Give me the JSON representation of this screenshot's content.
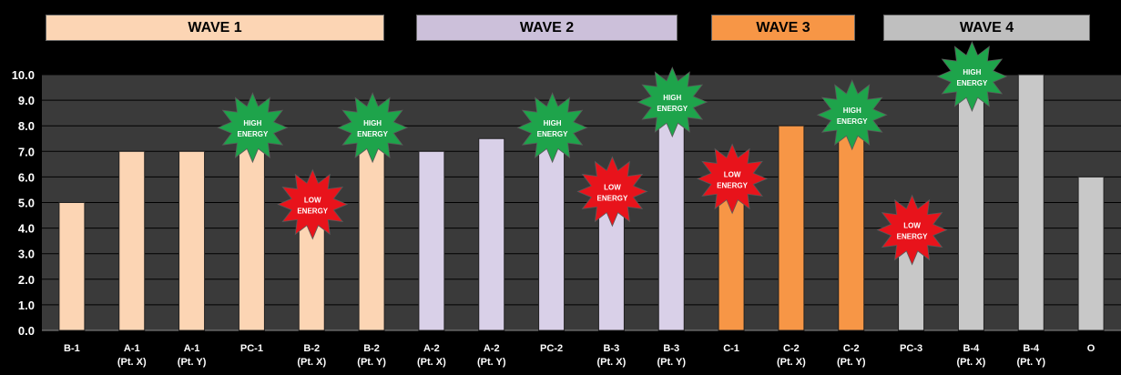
{
  "banners": [
    {
      "label": "WAVE 1",
      "color": "#FCD5B4"
    },
    {
      "label": "WAVE 2",
      "color": "#CCC0DA"
    },
    {
      "label": "WAVE 3",
      "color": "#F79646"
    },
    {
      "label": "WAVE 4",
      "color": "#BFBFBF"
    }
  ],
  "chart_data": {
    "type": "bar",
    "title": "",
    "xlabel": "",
    "ylabel": "",
    "ylim": [
      0,
      10
    ],
    "yticks": [
      "0.0",
      "1.0",
      "2.0",
      "3.0",
      "4.0",
      "5.0",
      "6.0",
      "7.0",
      "8.0",
      "9.0",
      "10.0"
    ],
    "grid": true,
    "categories": [
      [
        "B-1"
      ],
      [
        "A-1",
        "(Pt. X)"
      ],
      [
        "A-1",
        "(Pt. Y)"
      ],
      [
        "PC-1"
      ],
      [
        "B-2",
        "(Pt. X)"
      ],
      [
        "B-2",
        "(Pt. Y)"
      ],
      [
        "A-2",
        "(Pt. X)"
      ],
      [
        "A-2",
        "(Pt. Y)"
      ],
      [
        "PC-2"
      ],
      [
        "B-3",
        "(Pt. X)"
      ],
      [
        "B-3",
        "(Pt. Y)"
      ],
      [
        "C-1"
      ],
      [
        "C-2",
        "(Pt. X)"
      ],
      [
        "C-2",
        "(Pt. Y)"
      ],
      [
        "PC-3"
      ],
      [
        "B-4",
        "(Pt. X)"
      ],
      [
        "B-4",
        "(Pt. Y)"
      ],
      [
        "O"
      ]
    ],
    "values": [
      5.0,
      7.0,
      7.0,
      8.0,
      5.0,
      8.0,
      7.0,
      7.5,
      8.0,
      5.5,
      9.0,
      6.0,
      8.0,
      8.5,
      4.0,
      10.0,
      10.0,
      6.0
    ],
    "bar_colors": [
      "#FCD5B4",
      "#FCD5B4",
      "#FCD5B4",
      "#FCD5B4",
      "#FCD5B4",
      "#FCD5B4",
      "#D9D0E8",
      "#D9D0E8",
      "#D9D0E8",
      "#D9D0E8",
      "#D9D0E8",
      "#F79646",
      "#F79646",
      "#F79646",
      "#C8C8C8",
      "#C8C8C8",
      "#C8C8C8",
      "#C8C8C8"
    ],
    "annotations": [
      {
        "category_index": 3,
        "lines": [
          "HIGH",
          "ENERGY"
        ],
        "color": "#1EA44B"
      },
      {
        "category_index": 4,
        "lines": [
          "LOW",
          "ENERGY"
        ],
        "color": "#E8131B"
      },
      {
        "category_index": 5,
        "lines": [
          "HIGH",
          "ENERGY"
        ],
        "color": "#1EA44B"
      },
      {
        "category_index": 8,
        "lines": [
          "HIGH",
          "ENERGY"
        ],
        "color": "#1EA44B"
      },
      {
        "category_index": 9,
        "lines": [
          "LOW",
          "ENERGY"
        ],
        "color": "#E8131B"
      },
      {
        "category_index": 10,
        "lines": [
          "HIGH",
          "ENERGY"
        ],
        "color": "#1EA44B"
      },
      {
        "category_index": 11,
        "lines": [
          "LOW",
          "ENERGY"
        ],
        "color": "#E8131B"
      },
      {
        "category_index": 13,
        "lines": [
          "HIGH",
          "ENERGY"
        ],
        "color": "#1EA44B"
      },
      {
        "category_index": 14,
        "lines": [
          "LOW",
          "ENERGY"
        ],
        "color": "#E8131B"
      },
      {
        "category_index": 15,
        "lines": [
          "HIGH",
          "ENERGY"
        ],
        "color": "#1EA44B"
      }
    ],
    "colors": {
      "plot_bg": "#3A3A3A",
      "grid": "#000000",
      "text": "#FFFFFF"
    }
  }
}
